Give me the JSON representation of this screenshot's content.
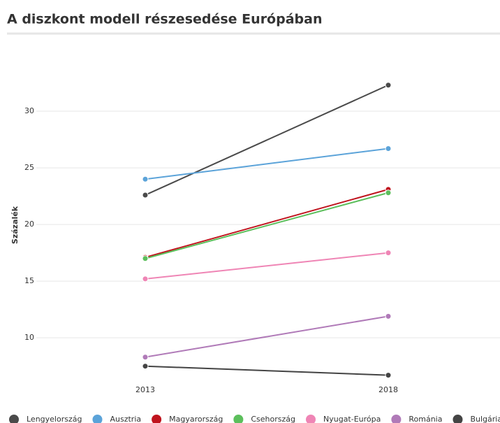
{
  "chart_data": {
    "type": "line",
    "title": "A diszkont modell részesedése Európában",
    "y_label": "Százalék",
    "categories": [
      "2013",
      "2018"
    ],
    "series": [
      {
        "name": "Lengyelország",
        "color": "#4a4a4a",
        "values": [
          22.6,
          32.3
        ]
      },
      {
        "name": "Ausztria",
        "color": "#5ba3d9",
        "values": [
          24.0,
          26.7
        ]
      },
      {
        "name": "Magyarország",
        "color": "#c0141e",
        "values": [
          17.1,
          23.1
        ]
      },
      {
        "name": "Csehország",
        "color": "#5cbf5c",
        "values": [
          17.0,
          22.8
        ]
      },
      {
        "name": "Nyugat-Európa",
        "color": "#ef85b5",
        "values": [
          15.2,
          17.5
        ]
      },
      {
        "name": "Románia",
        "color": "#b07ab8",
        "values": [
          8.3,
          11.9
        ]
      },
      {
        "name": "Bulgária",
        "color": "#444444",
        "values": [
          7.5,
          6.7
        ]
      }
    ],
    "ylim": [
      6,
      35
    ],
    "yticks": [
      10,
      15,
      20,
      25,
      30
    ],
    "grid": true
  }
}
